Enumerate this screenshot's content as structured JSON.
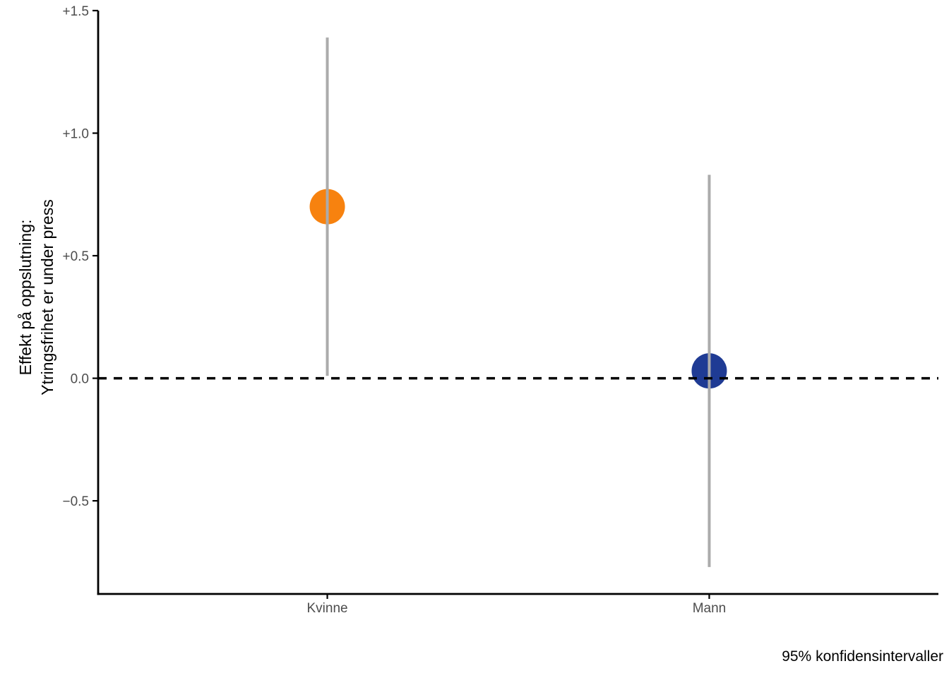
{
  "figure": {
    "caption": "95% konfidensintervaller",
    "y_axis_title_line1": "Effekt på oppslutning:",
    "y_axis_title_line2": "Ytringsfrihet er under press"
  },
  "chart_data": {
    "type": "scatter",
    "subtype": "point-range coefficient plot with 95% confidence intervals",
    "title": "",
    "xlabel": "",
    "ylabel": "Effekt på oppslutning: Ytringsfrihet er under press",
    "caption": "95% konfidensintervaller",
    "categories": [
      "Kvinne",
      "Mann"
    ],
    "series": [
      {
        "name": "Kvinne",
        "estimate": 0.7,
        "ci_low": 0.01,
        "ci_high": 1.39,
        "color": "#F7820F"
      },
      {
        "name": "Mann",
        "estimate": 0.03,
        "ci_low": -0.77,
        "ci_high": 0.83,
        "color": "#1F3B94"
      }
    ],
    "yticks": [
      {
        "value": 1.5,
        "label": "+1.5"
      },
      {
        "value": 1.0,
        "label": "+1.0"
      },
      {
        "value": 0.5,
        "label": "+0.5"
      },
      {
        "value": 0.0,
        "label": "0.0"
      },
      {
        "value": -0.5,
        "label": "−0.5"
      }
    ],
    "ylim": [
      -0.88,
      1.5
    ],
    "reference_line": {
      "y": 0,
      "style": "dashed",
      "color": "#000000"
    },
    "grid": false,
    "legend": "none",
    "colors": {
      "ci_line": "#ABABAB",
      "axis": "#000000",
      "tick_label": "#4D4D4D",
      "background": "#FFFFFF"
    }
  }
}
